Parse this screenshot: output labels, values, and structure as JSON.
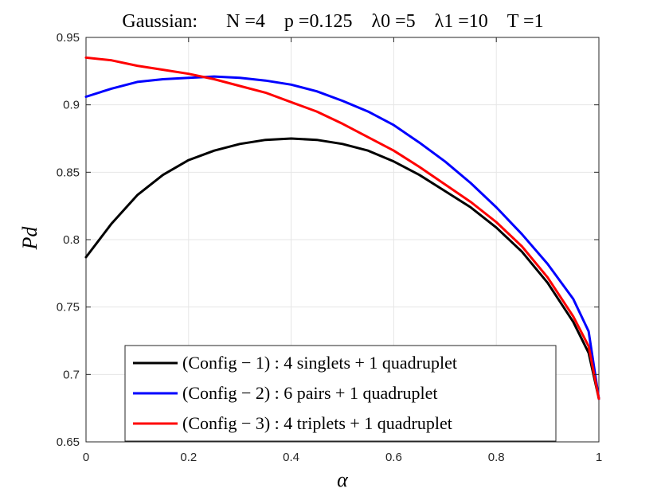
{
  "chart_data": {
    "type": "line",
    "title": "Gaussian:      N =4    p =0.125    λ0 =5    λ1 =10    T =1",
    "xlabel": "α",
    "ylabel": "Pd",
    "xlim": [
      0,
      1
    ],
    "ylim": [
      0.65,
      0.95
    ],
    "xticks": [
      0,
      0.2,
      0.4,
      0.6,
      0.8,
      1
    ],
    "xtick_labels": [
      "0",
      "0.2",
      "0.4",
      "0.6",
      "0.8",
      "1"
    ],
    "yticks": [
      0.65,
      0.7,
      0.75,
      0.8,
      0.85,
      0.9,
      0.95
    ],
    "ytick_labels": [
      "0.65",
      "0.7",
      "0.75",
      "0.8",
      "0.85",
      "0.9",
      "0.95"
    ],
    "grid": true,
    "legend_position": "bottom-center",
    "x": [
      0,
      0.05,
      0.1,
      0.15,
      0.2,
      0.25,
      0.3,
      0.35,
      0.4,
      0.45,
      0.5,
      0.55,
      0.6,
      0.65,
      0.7,
      0.75,
      0.8,
      0.85,
      0.9,
      0.95,
      0.98,
      1
    ],
    "series": [
      {
        "name": "(Config − 1) : 4 singlets + 1 quadruplet",
        "color": "#000000",
        "values": [
          0.787,
          0.812,
          0.833,
          0.848,
          0.859,
          0.866,
          0.871,
          0.874,
          0.875,
          0.874,
          0.871,
          0.866,
          0.858,
          0.848,
          0.836,
          0.824,
          0.809,
          0.791,
          0.768,
          0.739,
          0.716,
          0.682
        ]
      },
      {
        "name": "(Config − 2) : 6 pairs + 1 quadruplet",
        "color": "#0000ff",
        "values": [
          0.906,
          0.912,
          0.917,
          0.919,
          0.92,
          0.921,
          0.92,
          0.918,
          0.915,
          0.91,
          0.903,
          0.895,
          0.885,
          0.872,
          0.858,
          0.842,
          0.824,
          0.804,
          0.782,
          0.756,
          0.732,
          0.682
        ]
      },
      {
        "name": "(Config − 3) : 4 triplets + 1 quadruplet",
        "color": "#ff0000",
        "values": [
          0.935,
          0.933,
          0.929,
          0.926,
          0.923,
          0.919,
          0.914,
          0.909,
          0.902,
          0.895,
          0.886,
          0.876,
          0.866,
          0.854,
          0.841,
          0.828,
          0.813,
          0.795,
          0.772,
          0.743,
          0.721,
          0.682
        ]
      }
    ]
  }
}
